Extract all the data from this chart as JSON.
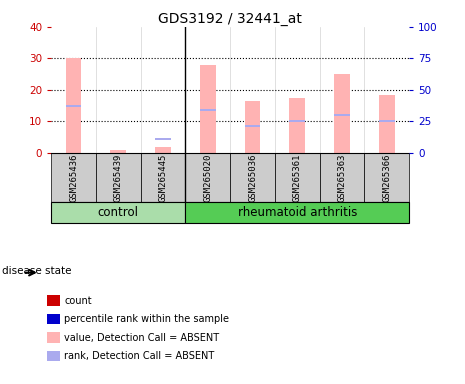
{
  "title": "GDS3192 / 32441_at",
  "samples": [
    "GSM265436",
    "GSM265439",
    "GSM265445",
    "GSM265020",
    "GSM265036",
    "GSM265361",
    "GSM265363",
    "GSM265366"
  ],
  "n_control": 3,
  "n_ra": 5,
  "group_labels": [
    "control",
    "rheumatoid arthritis"
  ],
  "value_absent": [
    30.0,
    1.0,
    2.0,
    28.0,
    16.5,
    17.5,
    25.0,
    18.5
  ],
  "rank_absent": [
    15.0,
    0.0,
    4.5,
    13.5,
    8.5,
    10.0,
    12.0,
    10.0
  ],
  "ylim_left": [
    0,
    40
  ],
  "ylim_right": [
    0,
    100
  ],
  "left_ticks": [
    0,
    10,
    20,
    30,
    40
  ],
  "right_ticks": [
    0,
    25,
    50,
    75,
    100
  ],
  "color_value_absent": "#ffb3b3",
  "color_rank_absent": "#aaaaee",
  "color_count": "#cc0000",
  "color_rank": "#0000cc",
  "color_control_bg": "#aaddaa",
  "color_ra_bg": "#55cc55",
  "color_sample_bg": "#cccccc",
  "left_axis_color": "#cc0000",
  "right_axis_color": "#0000cc",
  "bar_width": 0.35
}
